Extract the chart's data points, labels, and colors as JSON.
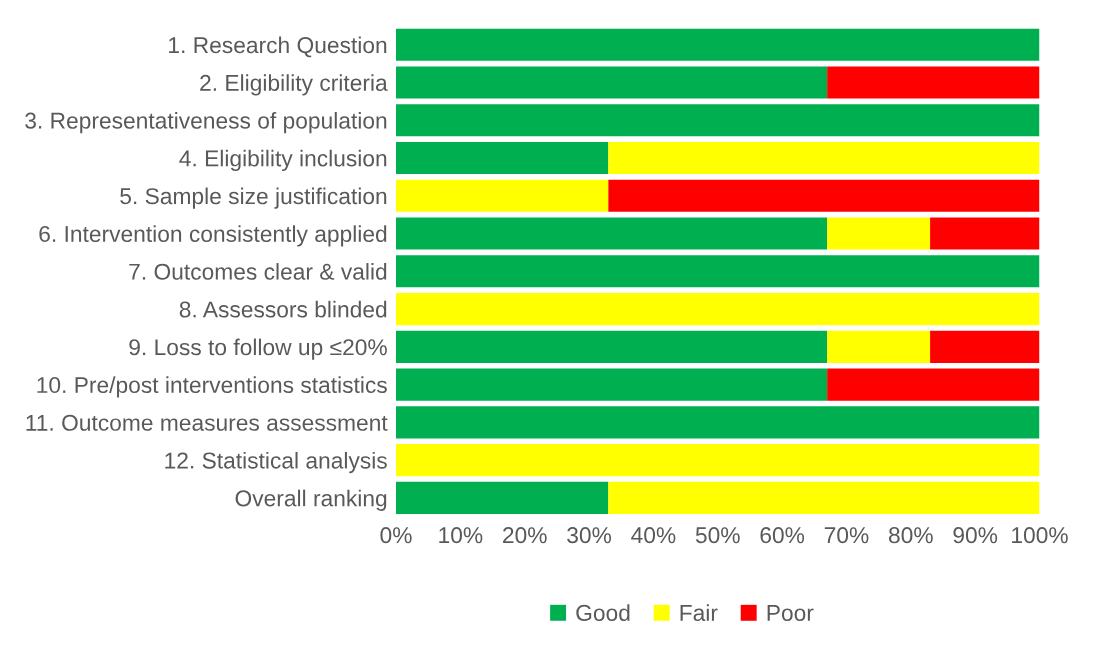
{
  "chart_data": {
    "type": "bar",
    "orientation": "horizontal",
    "stacked": true,
    "categories": [
      "1. Research Question",
      "2. Eligibility criteria",
      "3. Representativeness of population",
      "4. Eligibility inclusion",
      "5. Sample size justification",
      "6. Intervention consistently applied",
      "7. Outcomes clear & valid",
      "8. Assessors blinded",
      "9. Loss to follow up ≤20%",
      "10. Pre/post interventions statistics",
      "11. Outcome measures assessment",
      "12. Statistical analysis",
      "Overall ranking"
    ],
    "series": [
      {
        "name": "Good",
        "color": "#00b050",
        "values": [
          100,
          67,
          100,
          33,
          0,
          67,
          100,
          0,
          67,
          67,
          100,
          0,
          33
        ]
      },
      {
        "name": "Fair",
        "color": "#ffff00",
        "values": [
          0,
          0,
          0,
          67,
          33,
          16,
          0,
          100,
          16,
          0,
          0,
          100,
          67
        ]
      },
      {
        "name": "Poor",
        "color": "#ff0000",
        "values": [
          0,
          33,
          0,
          0,
          67,
          17,
          0,
          0,
          17,
          33,
          0,
          0,
          0
        ]
      }
    ],
    "xlim": [
      0,
      100
    ],
    "xticks": [
      {
        "value": 0,
        "label": "0%"
      },
      {
        "value": 10,
        "label": "10%"
      },
      {
        "value": 20,
        "label": "20%"
      },
      {
        "value": 30,
        "label": "30%"
      },
      {
        "value": 40,
        "label": "40%"
      },
      {
        "value": 50,
        "label": "50%"
      },
      {
        "value": 60,
        "label": "60%"
      },
      {
        "value": 70,
        "label": "70%"
      },
      {
        "value": 80,
        "label": "80%"
      },
      {
        "value": 90,
        "label": "90%"
      },
      {
        "value": 100,
        "label": "100%"
      }
    ],
    "legend": "bottom",
    "grid": false
  }
}
